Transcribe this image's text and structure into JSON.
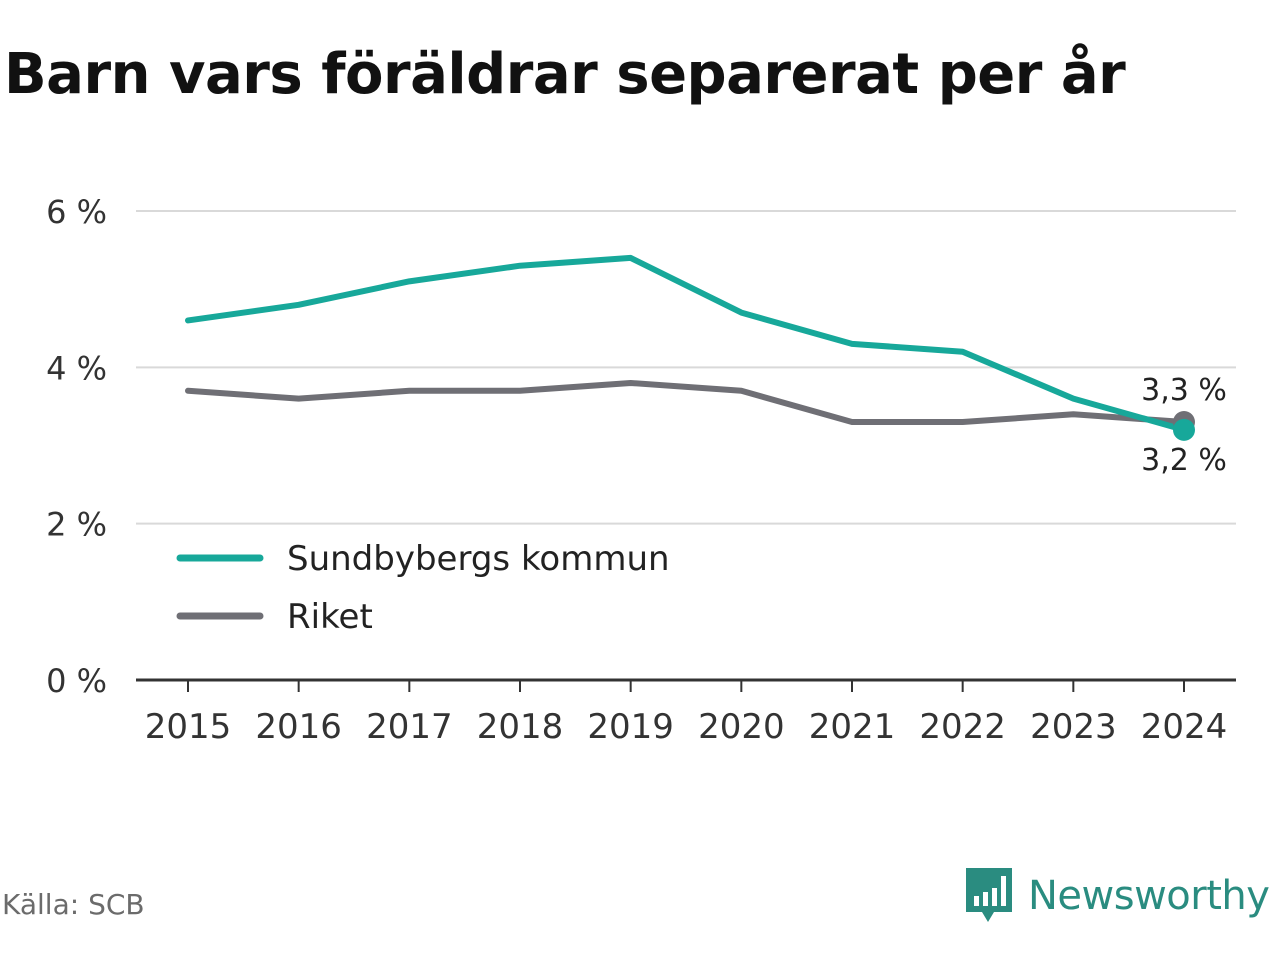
{
  "title": "Barn vars föräldrar separerat per år",
  "source": "Källa: SCB",
  "brand": "Newsworthy",
  "colors": {
    "teal": "#17a89a",
    "gray": "#6f6f75",
    "grid": "#d9d9d9",
    "axis": "#333333",
    "brand": "#2a8c80"
  },
  "chart_data": {
    "type": "line",
    "categories": [
      "2015",
      "2016",
      "2017",
      "2018",
      "2019",
      "2020",
      "2021",
      "2022",
      "2023",
      "2024"
    ],
    "y_ticks": [
      "0 %",
      "2 %",
      "4 %",
      "6 %"
    ],
    "ylim": [
      0,
      6
    ],
    "grid": true,
    "legend_placement": "bottom-left",
    "series": [
      {
        "name": "Sundbybergs kommun",
        "color": "#17a89a",
        "values": [
          4.6,
          4.8,
          5.1,
          5.3,
          5.4,
          4.7,
          4.3,
          4.2,
          3.6,
          3.2
        ],
        "end_label": "3,2 %"
      },
      {
        "name": "Riket",
        "color": "#6f6f75",
        "values": [
          3.7,
          3.6,
          3.7,
          3.7,
          3.8,
          3.7,
          3.3,
          3.3,
          3.4,
          3.3
        ],
        "end_label": "3,3 %"
      }
    ]
  }
}
